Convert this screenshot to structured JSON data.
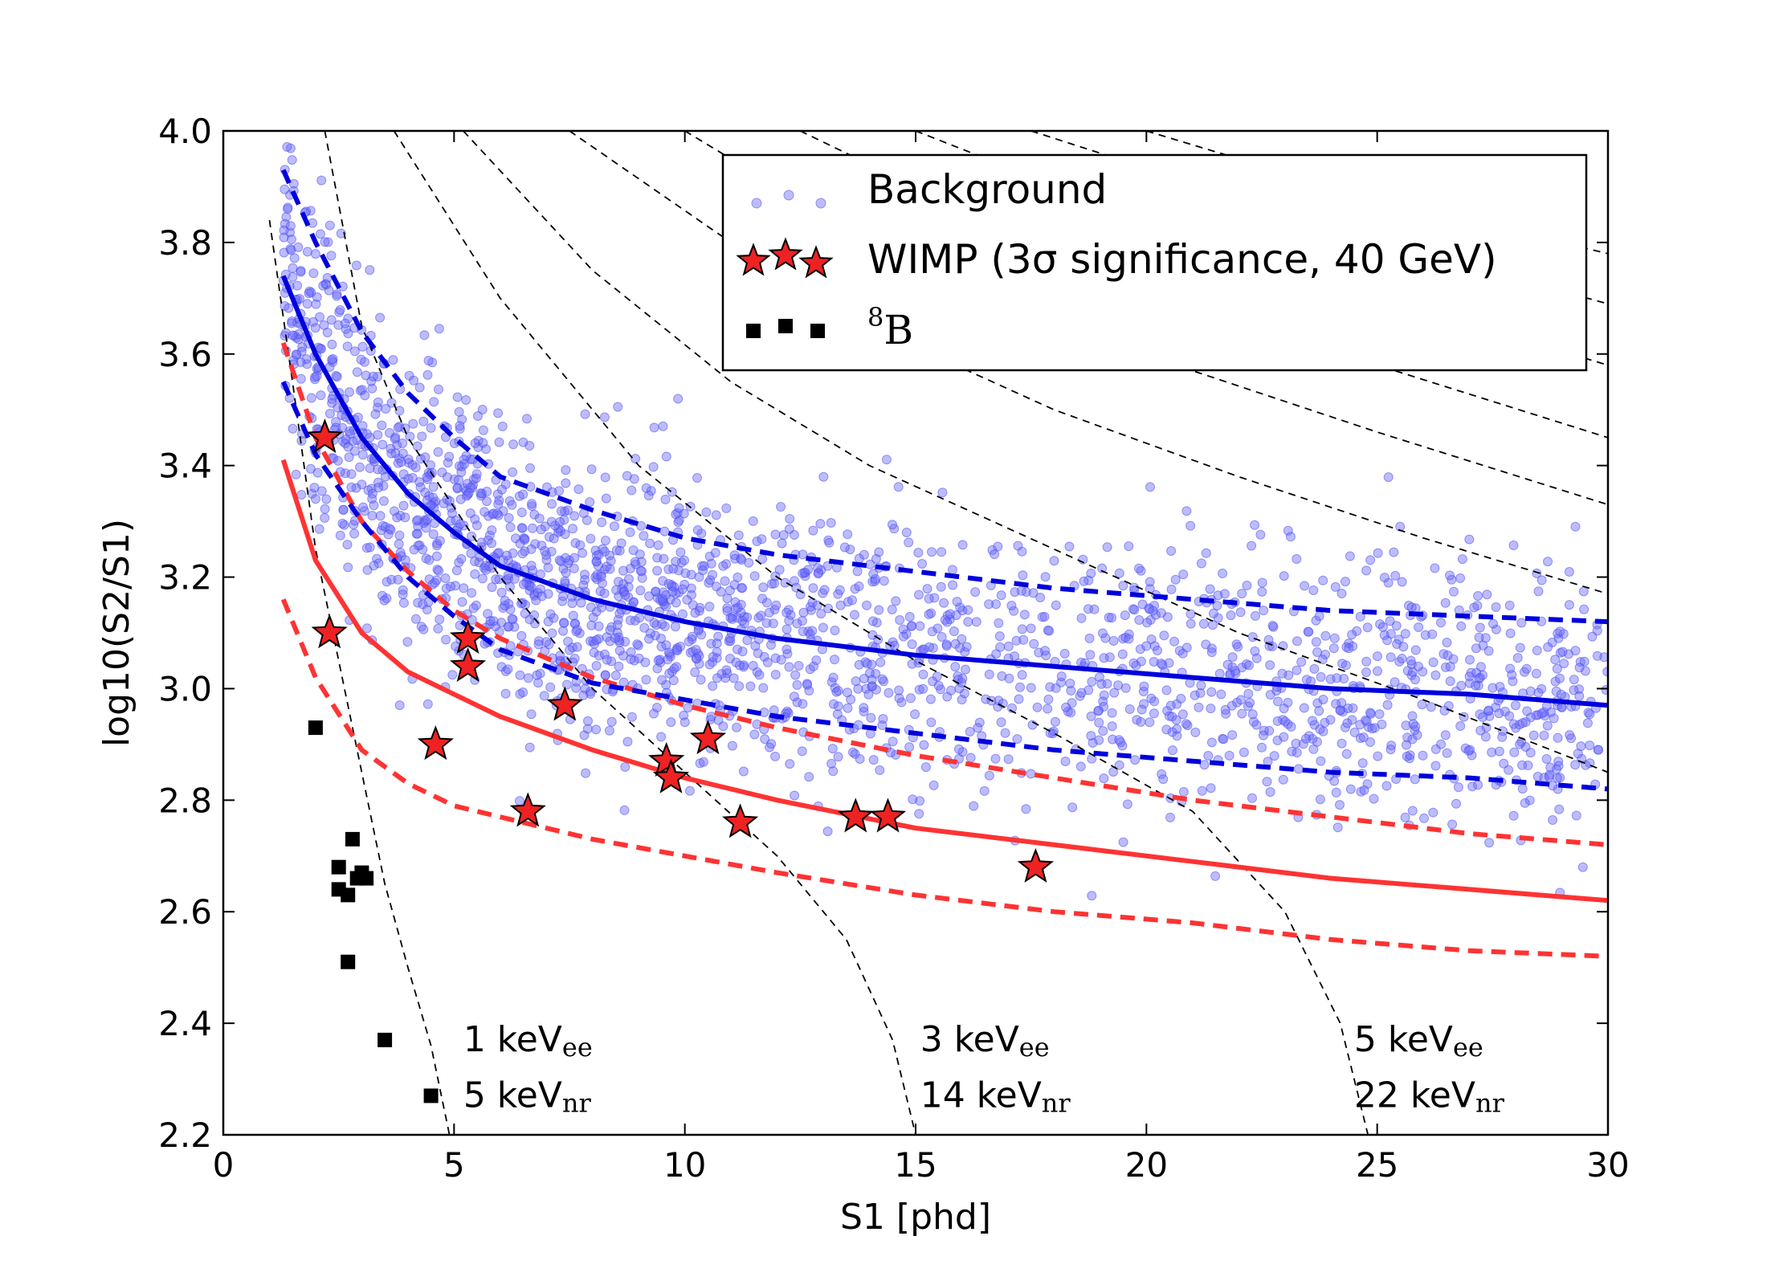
{
  "chart_data": {
    "type": "scatter",
    "xlabel": "S1 [phd]",
    "ylabel": "log10(S2/S1)",
    "xlim": [
      0,
      30
    ],
    "ylim": [
      2.2,
      4.0
    ],
    "grid": false,
    "legend_position": "top-right",
    "x_ticks": [
      "0",
      "5",
      "10",
      "15",
      "20",
      "25",
      "30"
    ],
    "y_ticks": [
      "2.2",
      "2.4",
      "2.6",
      "2.8",
      "3.0",
      "3.2",
      "3.4",
      "3.6",
      "3.8",
      "4.0"
    ],
    "x_tick_values": [
      0,
      5,
      10,
      15,
      20,
      25,
      30
    ],
    "y_tick_values": [
      2.2,
      2.4,
      2.6,
      2.8,
      3.0,
      3.2,
      3.4,
      3.6,
      3.8,
      4.0
    ],
    "legend": {
      "background": "Background",
      "wimp": "WIMP (3σ significance, 40 GeV)",
      "b8_sup": "8",
      "b8_base": "B"
    },
    "annotations": [
      {
        "ee_num": "1 keV",
        "ee_sub": "ee",
        "nr_num": "5 keV",
        "nr_sub": "nr",
        "x": 5.2
      },
      {
        "ee_num": "3 keV",
        "ee_sub": "ee",
        "nr_num": "14 keV",
        "nr_sub": "nr",
        "x": 15.1
      },
      {
        "ee_num": "5 keV",
        "ee_sub": "ee",
        "nr_num": "22 keV",
        "nr_sub": "nr",
        "x": 24.5
      }
    ],
    "colors": {
      "background_points": "#6b6bff",
      "er_band": "#0000dd",
      "nr_band": "#ff3333",
      "wimp_fill": "#ee2222",
      "b8": "#000000",
      "energy_contours": "#000000"
    },
    "series": [
      {
        "name": "Background",
        "kind": "scatter",
        "note": "approximately 2300 points following ER band (mean ~ solid blue line, spread ~0.12)",
        "count": 2300,
        "sigma": 0.12
      },
      {
        "name": "WIMP (3σ significance, 40 GeV)",
        "kind": "scatter",
        "x": [
          2.2,
          2.3,
          4.6,
          5.3,
          5.3,
          6.6,
          7.4,
          9.6,
          9.7,
          10.5,
          11.2,
          13.7,
          14.4,
          17.6
        ],
        "y": [
          3.45,
          3.1,
          2.9,
          3.09,
          3.04,
          2.78,
          2.97,
          2.87,
          2.84,
          2.91,
          2.76,
          2.77,
          2.77,
          2.68
        ]
      },
      {
        "name": "8B",
        "kind": "scatter",
        "x": [
          2.0,
          2.5,
          2.5,
          2.7,
          2.7,
          2.8,
          2.9,
          3.0,
          3.1,
          3.5,
          4.5
        ],
        "y": [
          2.93,
          2.68,
          2.64,
          2.63,
          2.51,
          2.73,
          2.66,
          2.67,
          2.66,
          2.37,
          2.27
        ]
      },
      {
        "name": "",
        "kind": "er_median",
        "x": [
          1.3,
          2,
          3,
          4,
          5,
          6,
          8,
          10,
          12,
          15,
          18,
          21,
          24,
          27,
          30
        ],
        "y": [
          3.74,
          3.6,
          3.45,
          3.35,
          3.28,
          3.22,
          3.16,
          3.12,
          3.09,
          3.06,
          3.04,
          3.02,
          3.0,
          2.99,
          2.97
        ]
      },
      {
        "name": "",
        "kind": "er_upper",
        "x": [
          1.3,
          2,
          3,
          4,
          5,
          6,
          8,
          10,
          12,
          15,
          18,
          21,
          24,
          27,
          30
        ],
        "y": [
          3.93,
          3.8,
          3.64,
          3.53,
          3.45,
          3.38,
          3.32,
          3.27,
          3.24,
          3.21,
          3.18,
          3.16,
          3.14,
          3.13,
          3.12
        ]
      },
      {
        "name": "",
        "kind": "er_lower",
        "x": [
          1.3,
          2,
          3,
          4,
          5,
          6,
          8,
          10,
          12,
          15,
          18,
          21,
          24,
          27,
          30
        ],
        "y": [
          3.55,
          3.42,
          3.3,
          3.2,
          3.13,
          3.07,
          3.01,
          2.98,
          2.95,
          2.92,
          2.89,
          2.87,
          2.85,
          2.84,
          2.82
        ]
      },
      {
        "name": "",
        "kind": "nr_median",
        "x": [
          1.3,
          2,
          3,
          4,
          5,
          6,
          8,
          10,
          12,
          15,
          18,
          21,
          24,
          27,
          30
        ],
        "y": [
          3.41,
          3.23,
          3.1,
          3.03,
          2.99,
          2.95,
          2.89,
          2.84,
          2.8,
          2.75,
          2.72,
          2.69,
          2.66,
          2.64,
          2.62
        ]
      },
      {
        "name": "",
        "kind": "nr_upper",
        "x": [
          1.3,
          2,
          3,
          4,
          5,
          6,
          8,
          10,
          12,
          15,
          18,
          21,
          24,
          27,
          30
        ],
        "y": [
          3.62,
          3.45,
          3.3,
          3.21,
          3.14,
          3.09,
          3.02,
          2.97,
          2.93,
          2.88,
          2.84,
          2.8,
          2.77,
          2.74,
          2.72
        ]
      },
      {
        "name": "",
        "kind": "nr_lower",
        "x": [
          1.3,
          2,
          3,
          4,
          5,
          6,
          8,
          10,
          12,
          15,
          18,
          21,
          24,
          27,
          30
        ],
        "y": [
          3.16,
          3.02,
          2.89,
          2.83,
          2.79,
          2.77,
          2.73,
          2.7,
          2.67,
          2.63,
          2.6,
          2.58,
          2.55,
          2.53,
          2.52
        ]
      }
    ],
    "energy_contours": [
      {
        "points": [
          [
            1.0,
            3.84
          ],
          [
            1.5,
            3.55
          ],
          [
            2.0,
            3.25
          ],
          [
            2.5,
            3.05
          ],
          [
            3.0,
            2.85
          ],
          [
            3.5,
            2.65
          ],
          [
            4.0,
            2.5
          ],
          [
            4.5,
            2.36
          ],
          [
            4.9,
            2.2
          ]
        ]
      },
      {
        "points": [
          [
            2.2,
            4.0
          ],
          [
            3,
            3.65
          ],
          [
            4,
            3.45
          ],
          [
            6,
            3.2
          ],
          [
            8,
            3.0
          ],
          [
            10,
            2.85
          ],
          [
            12,
            2.7
          ],
          [
            13.5,
            2.55
          ],
          [
            14.5,
            2.37
          ],
          [
            15.0,
            2.2
          ]
        ]
      },
      {
        "points": [
          [
            3.7,
            4.0
          ],
          [
            6,
            3.7
          ],
          [
            9,
            3.4
          ],
          [
            12,
            3.2
          ],
          [
            15,
            3.05
          ],
          [
            18,
            2.92
          ],
          [
            21,
            2.78
          ],
          [
            23,
            2.6
          ],
          [
            24.2,
            2.4
          ],
          [
            24.8,
            2.2
          ]
        ]
      },
      {
        "points": [
          [
            5.2,
            4.0
          ],
          [
            8,
            3.75
          ],
          [
            11,
            3.55
          ],
          [
            14,
            3.4
          ],
          [
            18,
            3.25
          ],
          [
            22,
            3.1
          ],
          [
            26,
            2.98
          ],
          [
            30,
            2.85
          ]
        ]
      },
      {
        "points": [
          [
            7.5,
            4.0
          ],
          [
            11,
            3.8
          ],
          [
            14,
            3.65
          ],
          [
            18,
            3.5
          ],
          [
            22,
            3.38
          ],
          [
            26,
            3.27
          ],
          [
            30,
            3.17
          ]
        ]
      },
      {
        "points": [
          [
            10.0,
            4.0
          ],
          [
            13,
            3.85
          ],
          [
            17,
            3.7
          ],
          [
            21,
            3.57
          ],
          [
            25,
            3.46
          ],
          [
            30,
            3.33
          ]
        ]
      },
      {
        "points": [
          [
            12.5,
            4.0
          ],
          [
            16,
            3.86
          ],
          [
            20,
            3.73
          ],
          [
            25,
            3.58
          ],
          [
            30,
            3.45
          ]
        ]
      },
      {
        "points": [
          [
            15.0,
            4.0
          ],
          [
            19,
            3.87
          ],
          [
            24,
            3.73
          ],
          [
            30,
            3.58
          ]
        ]
      },
      {
        "points": [
          [
            17.5,
            4.0
          ],
          [
            22,
            3.88
          ],
          [
            26,
            3.78
          ],
          [
            30,
            3.69
          ]
        ]
      },
      {
        "points": [
          [
            20.0,
            4.0
          ],
          [
            24,
            3.9
          ],
          [
            30,
            3.78
          ]
        ]
      }
    ]
  }
}
